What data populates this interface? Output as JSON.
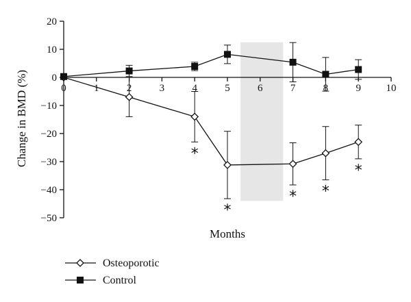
{
  "chart_data": {
    "type": "line",
    "xlabel": "Months",
    "ylabel": "Change in BMD (%)",
    "xlim": [
      0,
      10
    ],
    "ylim": [
      -50,
      20
    ],
    "x_ticks": [
      0,
      1,
      2,
      3,
      4,
      5,
      6,
      7,
      8,
      9,
      10
    ],
    "y_ticks": [
      20,
      10,
      0,
      -10,
      -20,
      -30,
      -40,
      -50
    ],
    "grid": false,
    "legend_position": "bottom-left",
    "shaded_region": {
      "x_start": 5.4,
      "x_end": 6.7,
      "y_start": -44,
      "y_end": 12.5,
      "color": "#e6e6e6"
    },
    "significance_marker": "*",
    "series": [
      {
        "name": "Osteoporotic",
        "marker": "open-diamond",
        "points": [
          {
            "x": 0,
            "y": 0,
            "error": 0,
            "significant": false
          },
          {
            "x": 2,
            "y": -7,
            "error": 7,
            "significant": false
          },
          {
            "x": 4,
            "y": -14,
            "error": 9,
            "significant": true
          },
          {
            "x": 5,
            "y": -31.2,
            "error": 12,
            "significant": true
          },
          {
            "x": 7,
            "y": -30.8,
            "error": 7.5,
            "significant": true
          },
          {
            "x": 8,
            "y": -27,
            "error": 9.5,
            "significant": true
          },
          {
            "x": 9,
            "y": -23,
            "error": 6,
            "significant": true
          }
        ]
      },
      {
        "name": "Control",
        "marker": "filled-square",
        "points": [
          {
            "x": 0,
            "y": 0.3,
            "error": 0
          },
          {
            "x": 2,
            "y": 2.3,
            "error": 2
          },
          {
            "x": 4,
            "y": 3.9,
            "error": 1.5
          },
          {
            "x": 5,
            "y": 8.2,
            "error": 3.3
          },
          {
            "x": 7,
            "y": 5.4,
            "error": 7
          },
          {
            "x": 8,
            "y": 1.1,
            "error": 6
          },
          {
            "x": 9,
            "y": 2.8,
            "error": 3.5
          }
        ]
      }
    ]
  }
}
